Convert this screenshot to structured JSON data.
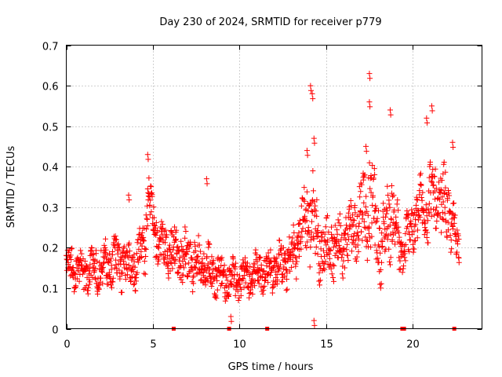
{
  "chart_data": {
    "type": "scatter",
    "title": "Day 230 of 2024, SRMTID for receiver p779",
    "xlabel": "GPS time / hours",
    "ylabel": "SRMTID / TECUs",
    "xlim": [
      0,
      24
    ],
    "ylim": [
      0,
      0.7
    ],
    "xticks": [
      0,
      5,
      10,
      15,
      20
    ],
    "xtick_labels": [
      "0",
      "5",
      "10",
      "15",
      "20"
    ],
    "yticks": [
      0,
      0.1,
      0.2,
      0.3,
      0.4,
      0.5,
      0.6,
      0.7
    ],
    "ytick_labels": [
      "0",
      "0.1",
      "0.2",
      "0.3",
      "0.4",
      "0.5",
      "0.6",
      "0.7"
    ],
    "grid": true,
    "marker": "plus",
    "color": "#ff0000",
    "series": [
      {
        "name": "SRMTID",
        "envelope": [
          {
            "x": 0.0,
            "y": 0.16,
            "spread": 0.04
          },
          {
            "x": 1.0,
            "y": 0.14,
            "spread": 0.05
          },
          {
            "x": 2.0,
            "y": 0.15,
            "spread": 0.05
          },
          {
            "x": 3.0,
            "y": 0.17,
            "spread": 0.06
          },
          {
            "x": 4.0,
            "y": 0.15,
            "spread": 0.05
          },
          {
            "x": 4.5,
            "y": 0.22,
            "spread": 0.08
          },
          {
            "x": 4.8,
            "y": 0.33,
            "spread": 0.07
          },
          {
            "x": 5.3,
            "y": 0.2,
            "spread": 0.06
          },
          {
            "x": 6.0,
            "y": 0.19,
            "spread": 0.06
          },
          {
            "x": 7.0,
            "y": 0.17,
            "spread": 0.06
          },
          {
            "x": 8.0,
            "y": 0.15,
            "spread": 0.06
          },
          {
            "x": 9.0,
            "y": 0.13,
            "spread": 0.05
          },
          {
            "x": 10.0,
            "y": 0.12,
            "spread": 0.05
          },
          {
            "x": 11.0,
            "y": 0.14,
            "spread": 0.05
          },
          {
            "x": 12.0,
            "y": 0.15,
            "spread": 0.05
          },
          {
            "x": 13.0,
            "y": 0.17,
            "spread": 0.06
          },
          {
            "x": 13.6,
            "y": 0.25,
            "spread": 0.07
          },
          {
            "x": 14.1,
            "y": 0.3,
            "spread": 0.12
          },
          {
            "x": 14.6,
            "y": 0.2,
            "spread": 0.07
          },
          {
            "x": 15.5,
            "y": 0.2,
            "spread": 0.07
          },
          {
            "x": 16.5,
            "y": 0.24,
            "spread": 0.08
          },
          {
            "x": 17.5,
            "y": 0.32,
            "spread": 0.12
          },
          {
            "x": 18.2,
            "y": 0.2,
            "spread": 0.08
          },
          {
            "x": 18.8,
            "y": 0.3,
            "spread": 0.1
          },
          {
            "x": 19.3,
            "y": 0.18,
            "spread": 0.06
          },
          {
            "x": 20.0,
            "y": 0.26,
            "spread": 0.07
          },
          {
            "x": 21.0,
            "y": 0.32,
            "spread": 0.09
          },
          {
            "x": 22.0,
            "y": 0.3,
            "spread": 0.08
          },
          {
            "x": 22.7,
            "y": 0.19,
            "spread": 0.04
          }
        ],
        "peaks": [
          {
            "x": 4.7,
            "y": 0.43
          },
          {
            "x": 3.6,
            "y": 0.33
          },
          {
            "x": 8.1,
            "y": 0.37
          },
          {
            "x": 13.9,
            "y": 0.44
          },
          {
            "x": 14.1,
            "y": 0.6
          },
          {
            "x": 14.2,
            "y": 0.58
          },
          {
            "x": 14.3,
            "y": 0.47
          },
          {
            "x": 17.3,
            "y": 0.45
          },
          {
            "x": 17.5,
            "y": 0.63
          },
          {
            "x": 17.5,
            "y": 0.56
          },
          {
            "x": 18.7,
            "y": 0.54
          },
          {
            "x": 21.1,
            "y": 0.55
          },
          {
            "x": 20.8,
            "y": 0.52
          },
          {
            "x": 22.3,
            "y": 0.46
          },
          {
            "x": 14.3,
            "y": 0.02
          },
          {
            "x": 9.5,
            "y": 0.03
          }
        ],
        "data_gaps_x": [
          6.2,
          9.4,
          11.6,
          19.4,
          19.5,
          22.4
        ]
      }
    ]
  }
}
